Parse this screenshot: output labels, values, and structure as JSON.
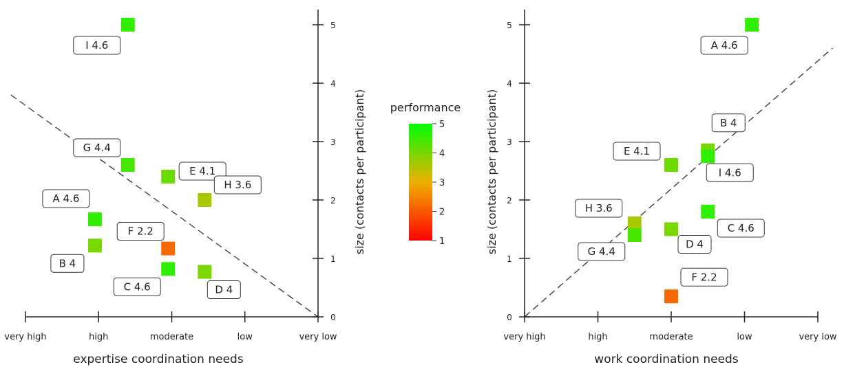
{
  "chart_data": [
    {
      "type": "scatter",
      "xlabel": "expertise coordination needs",
      "ylabel": "size (contacts per participant)",
      "x_categories": [
        "very high",
        "high",
        "moderate",
        "low",
        "very low"
      ],
      "ylim": [
        0,
        5
      ],
      "y_ticks": [
        0,
        1,
        2,
        3,
        4,
        5
      ],
      "trend_line": {
        "style": "dashed",
        "from": [
          -0.2,
          3.8
        ],
        "to": [
          4,
          0
        ]
      },
      "points": [
        {
          "label": "I 4.6",
          "x": 1.4,
          "y": 5.0,
          "performance": 4.6
        },
        {
          "label": "G 4.4",
          "x": 1.4,
          "y": 2.6,
          "performance": 4.4
        },
        {
          "label": "E 4.1",
          "x": 1.95,
          "y": 2.4,
          "performance": 4.1
        },
        {
          "label": "H 3.6",
          "x": 2.45,
          "y": 2.0,
          "performance": 3.6
        },
        {
          "label": "A 4.6",
          "x": 0.95,
          "y": 1.67,
          "performance": 4.6
        },
        {
          "label": "B 4",
          "x": 0.95,
          "y": 1.22,
          "performance": 4.0
        },
        {
          "label": "F 2.2",
          "x": 1.95,
          "y": 1.17,
          "performance": 2.2
        },
        {
          "label": "C 4.6",
          "x": 1.95,
          "y": 0.82,
          "performance": 4.6
        },
        {
          "label": "D 4",
          "x": 2.45,
          "y": 0.77,
          "performance": 4.0
        }
      ]
    },
    {
      "type": "scatter",
      "xlabel": "work coordination needs",
      "ylabel": "size (contacts per participant)",
      "x_categories": [
        "very high",
        "high",
        "moderate",
        "low",
        "very low"
      ],
      "ylim": [
        0,
        5
      ],
      "y_ticks": [
        0,
        1,
        2,
        3,
        4,
        5
      ],
      "trend_line": {
        "style": "dashed",
        "from": [
          0,
          0
        ],
        "to": [
          4.2,
          4.6
        ]
      },
      "points": [
        {
          "label": "A 4.6",
          "x": 3.1,
          "y": 5.0,
          "performance": 4.6
        },
        {
          "label": "B 4",
          "x": 2.5,
          "y": 2.85,
          "performance": 4.0
        },
        {
          "label": "I 4.6",
          "x": 2.5,
          "y": 2.75,
          "performance": 4.6
        },
        {
          "label": "E 4.1",
          "x": 2.0,
          "y": 2.6,
          "performance": 4.1
        },
        {
          "label": "C 4.6",
          "x": 2.5,
          "y": 1.8,
          "performance": 4.6
        },
        {
          "label": "H 3.6",
          "x": 1.5,
          "y": 1.6,
          "performance": 3.6
        },
        {
          "label": "D 4",
          "x": 2.0,
          "y": 1.5,
          "performance": 4.0
        },
        {
          "label": "G 4.4",
          "x": 1.5,
          "y": 1.4,
          "performance": 4.4
        },
        {
          "label": "F 2.2",
          "x": 2.0,
          "y": 0.35,
          "performance": 2.2
        }
      ]
    }
  ],
  "legend": {
    "title": "performance",
    "ticks": [
      "5",
      "4",
      "3",
      "2",
      "1"
    ],
    "range": [
      1,
      5
    ],
    "colors": {
      "low": "#ff0000",
      "mid": "#f0a000",
      "high": "#00ff00"
    }
  }
}
